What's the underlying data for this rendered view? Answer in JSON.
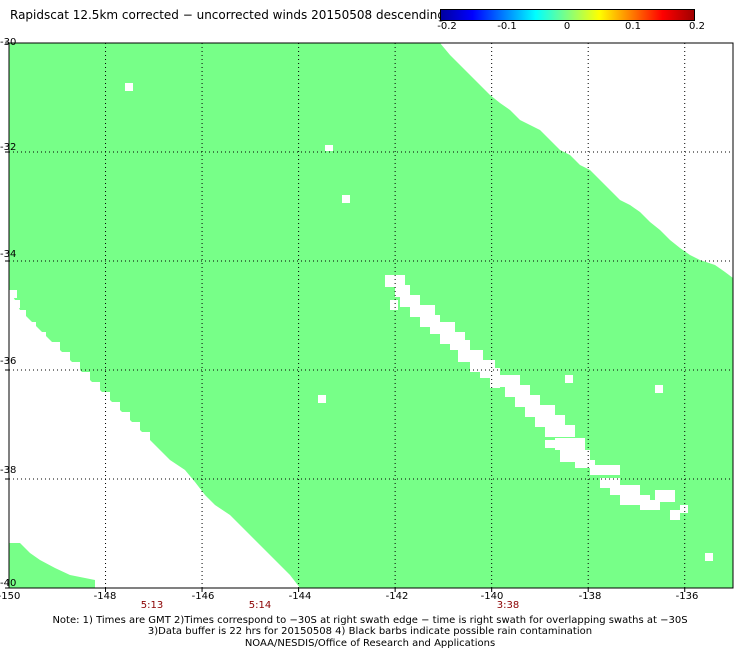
{
  "title": "Rapidscat 12.5km corrected − uncorrected winds 20150508 descending",
  "colorbar": {
    "colors": [
      "#0000a0",
      "#0000ff",
      "#0080ff",
      "#00ffff",
      "#80ff80",
      "#ffff00",
      "#ff8000",
      "#ff0000",
      "#a00000"
    ],
    "ticks": [
      "-0.2",
      "-0.1",
      "0",
      "0.1",
      "0.2"
    ]
  },
  "map": {
    "lon_range": [
      -150,
      -135
    ],
    "lat_range": [
      -40,
      -30
    ],
    "swath_color": "#77ff88",
    "lat_labels": [
      "-30",
      "-32",
      "-34",
      "-36",
      "-38",
      "-40"
    ],
    "lon_labels": [
      "-150",
      "-148",
      "-146",
      "-144",
      "-142",
      "-140",
      "-138",
      "-136"
    ],
    "times": [
      "5:13",
      "5:14",
      "3:38"
    ]
  },
  "notes": {
    "line1": "Note: 1) Times are GMT 2)Times correspond to −30S at right swath edge − time is right swath for overlapping swaths at −30S",
    "line2": "3)Data buffer is 22 hrs for 20150508 4) Black barbs indicate possible rain contamination",
    "line3": "NOAA/NESDIS/Office of Research and Applications"
  }
}
